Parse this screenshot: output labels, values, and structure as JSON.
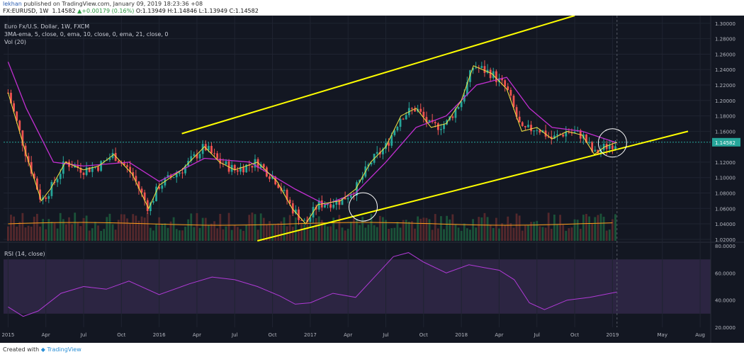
{
  "header": {
    "user": "lekhan",
    "published": " published on TradingView.com, January 09, 2019 18:23:36 +08",
    "symbol": "FX:EURUSD, 1W",
    "last": "1.14582",
    "change": "+0.00179 (0.16%)",
    "ohlc": "O:1.13949 H:1.14846 L:1.13949 C:1.14582"
  },
  "legend": {
    "title": "Euro Fx/U.S. Dollar, 1W, FXCM",
    "indicators": "3MA-ema, 5, close, 0, ema, 10, close, 0, ema, 21, close, 0",
    "volume": "Vol (20)"
  },
  "rsi_label": "RSI (14, close)",
  "footer": {
    "created_with": "Created with",
    "brand": "TradingView"
  },
  "colors": {
    "background": "#131722",
    "up_candle": "#26a69a",
    "down_candle": "#ef5350",
    "ema5": "#f4e542",
    "ema10": "#ff9f1c",
    "ema21": "#c22fd1",
    "trendline": "#ffff00",
    "rsi": "#b03ad6",
    "rsi_band": "#2c2542"
  },
  "chart_data": [
    {
      "type": "candlestick",
      "title": "Euro Fx/U.S. Dollar, 1W, FXCM",
      "ylim": [
        1.018,
        1.31
      ],
      "y_ticks": [
        "1.30000",
        "1.28000",
        "1.26000",
        "1.24000",
        "1.22000",
        "1.20000",
        "1.18000",
        "1.16000",
        "1.14582",
        "1.12000",
        "1.10000",
        "1.08000",
        "1.06000",
        "1.04000",
        "1.02000"
      ],
      "x_ticks": [
        "2015",
        "Apr",
        "Jul",
        "Oct",
        "2016",
        "Apr",
        "Jul",
        "Oct",
        "2017",
        "Apr",
        "Jul",
        "Oct",
        "2018",
        "Apr",
        "Jul",
        "Oct",
        "2019",
        "May",
        "Aug"
      ],
      "last_price": 1.14582,
      "close_path": [
        [
          2015.0,
          1.21
        ],
        [
          2015.12,
          1.13
        ],
        [
          2015.22,
          1.07
        ],
        [
          2015.28,
          1.085
        ],
        [
          2015.38,
          1.12
        ],
        [
          2015.5,
          1.11
        ],
        [
          2015.6,
          1.115
        ],
        [
          2015.7,
          1.13
        ],
        [
          2015.82,
          1.105
        ],
        [
          2015.93,
          1.06
        ],
        [
          2016.0,
          1.09
        ],
        [
          2016.15,
          1.11
        ],
        [
          2016.3,
          1.14
        ],
        [
          2016.4,
          1.12
        ],
        [
          2016.5,
          1.11
        ],
        [
          2016.65,
          1.12
        ],
        [
          2016.78,
          1.095
        ],
        [
          2016.88,
          1.06
        ],
        [
          2016.97,
          1.04
        ],
        [
          2017.05,
          1.065
        ],
        [
          2017.2,
          1.07
        ],
        [
          2017.3,
          1.085
        ],
        [
          2017.4,
          1.12
        ],
        [
          2017.5,
          1.14
        ],
        [
          2017.6,
          1.18
        ],
        [
          2017.7,
          1.19
        ],
        [
          2017.8,
          1.165
        ],
        [
          2017.9,
          1.17
        ],
        [
          2018.0,
          1.2
        ],
        [
          2018.08,
          1.245
        ],
        [
          2018.2,
          1.235
        ],
        [
          2018.3,
          1.215
        ],
        [
          2018.4,
          1.16
        ],
        [
          2018.5,
          1.165
        ],
        [
          2018.6,
          1.15
        ],
        [
          2018.7,
          1.16
        ],
        [
          2018.8,
          1.155
        ],
        [
          2018.88,
          1.13
        ],
        [
          2018.95,
          1.14
        ],
        [
          2019.03,
          1.14582
        ]
      ],
      "ema21_path": [
        [
          2015.0,
          1.25
        ],
        [
          2015.12,
          1.19
        ],
        [
          2015.3,
          1.12
        ],
        [
          2015.5,
          1.115
        ],
        [
          2015.8,
          1.12
        ],
        [
          2016.0,
          1.095
        ],
        [
          2016.3,
          1.125
        ],
        [
          2016.6,
          1.12
        ],
        [
          2016.9,
          1.085
        ],
        [
          2017.1,
          1.065
        ],
        [
          2017.3,
          1.08
        ],
        [
          2017.5,
          1.12
        ],
        [
          2017.7,
          1.165
        ],
        [
          2017.9,
          1.18
        ],
        [
          2018.1,
          1.22
        ],
        [
          2018.3,
          1.23
        ],
        [
          2018.45,
          1.19
        ],
        [
          2018.6,
          1.165
        ],
        [
          2018.8,
          1.16
        ],
        [
          2019.03,
          1.145
        ]
      ],
      "trendlines": [
        {
          "x": [
            2016.15,
            2018.75
          ],
          "y": [
            1.157,
            1.31
          ]
        },
        {
          "x": [
            2016.65,
            2019.5
          ],
          "y": [
            1.018,
            1.16
          ]
        }
      ],
      "highlight_circles": [
        [
          2017.35,
          1.062
        ],
        [
          2019.0,
          1.145
        ]
      ]
    },
    {
      "type": "line",
      "title": "RSI (14, close)",
      "ylim": [
        20,
        80
      ],
      "y_ticks": [
        "80.0000",
        "60.0000",
        "40.0000",
        "20.0000"
      ],
      "band": [
        30,
        70
      ],
      "series": [
        {
          "x": [
            2015.0,
            2015.1,
            2015.2,
            2015.35,
            2015.5,
            2015.65,
            2015.8,
            2016.0,
            2016.2,
            2016.35,
            2016.5,
            2016.65,
            2016.8,
            2016.9,
            2017.0,
            2017.15,
            2017.3,
            2017.45,
            2017.55,
            2017.65,
            2017.75,
            2017.9,
            2018.05,
            2018.15,
            2018.25,
            2018.35,
            2018.45,
            2018.55,
            2018.7,
            2018.85,
            2019.03
          ],
          "y": [
            35,
            28,
            32,
            45,
            50,
            48,
            54,
            44,
            52,
            57,
            55,
            50,
            43,
            37,
            38,
            45,
            42,
            60,
            72,
            75,
            68,
            60,
            66,
            64,
            62,
            55,
            38,
            33,
            40,
            42,
            46
          ]
        }
      ]
    }
  ]
}
